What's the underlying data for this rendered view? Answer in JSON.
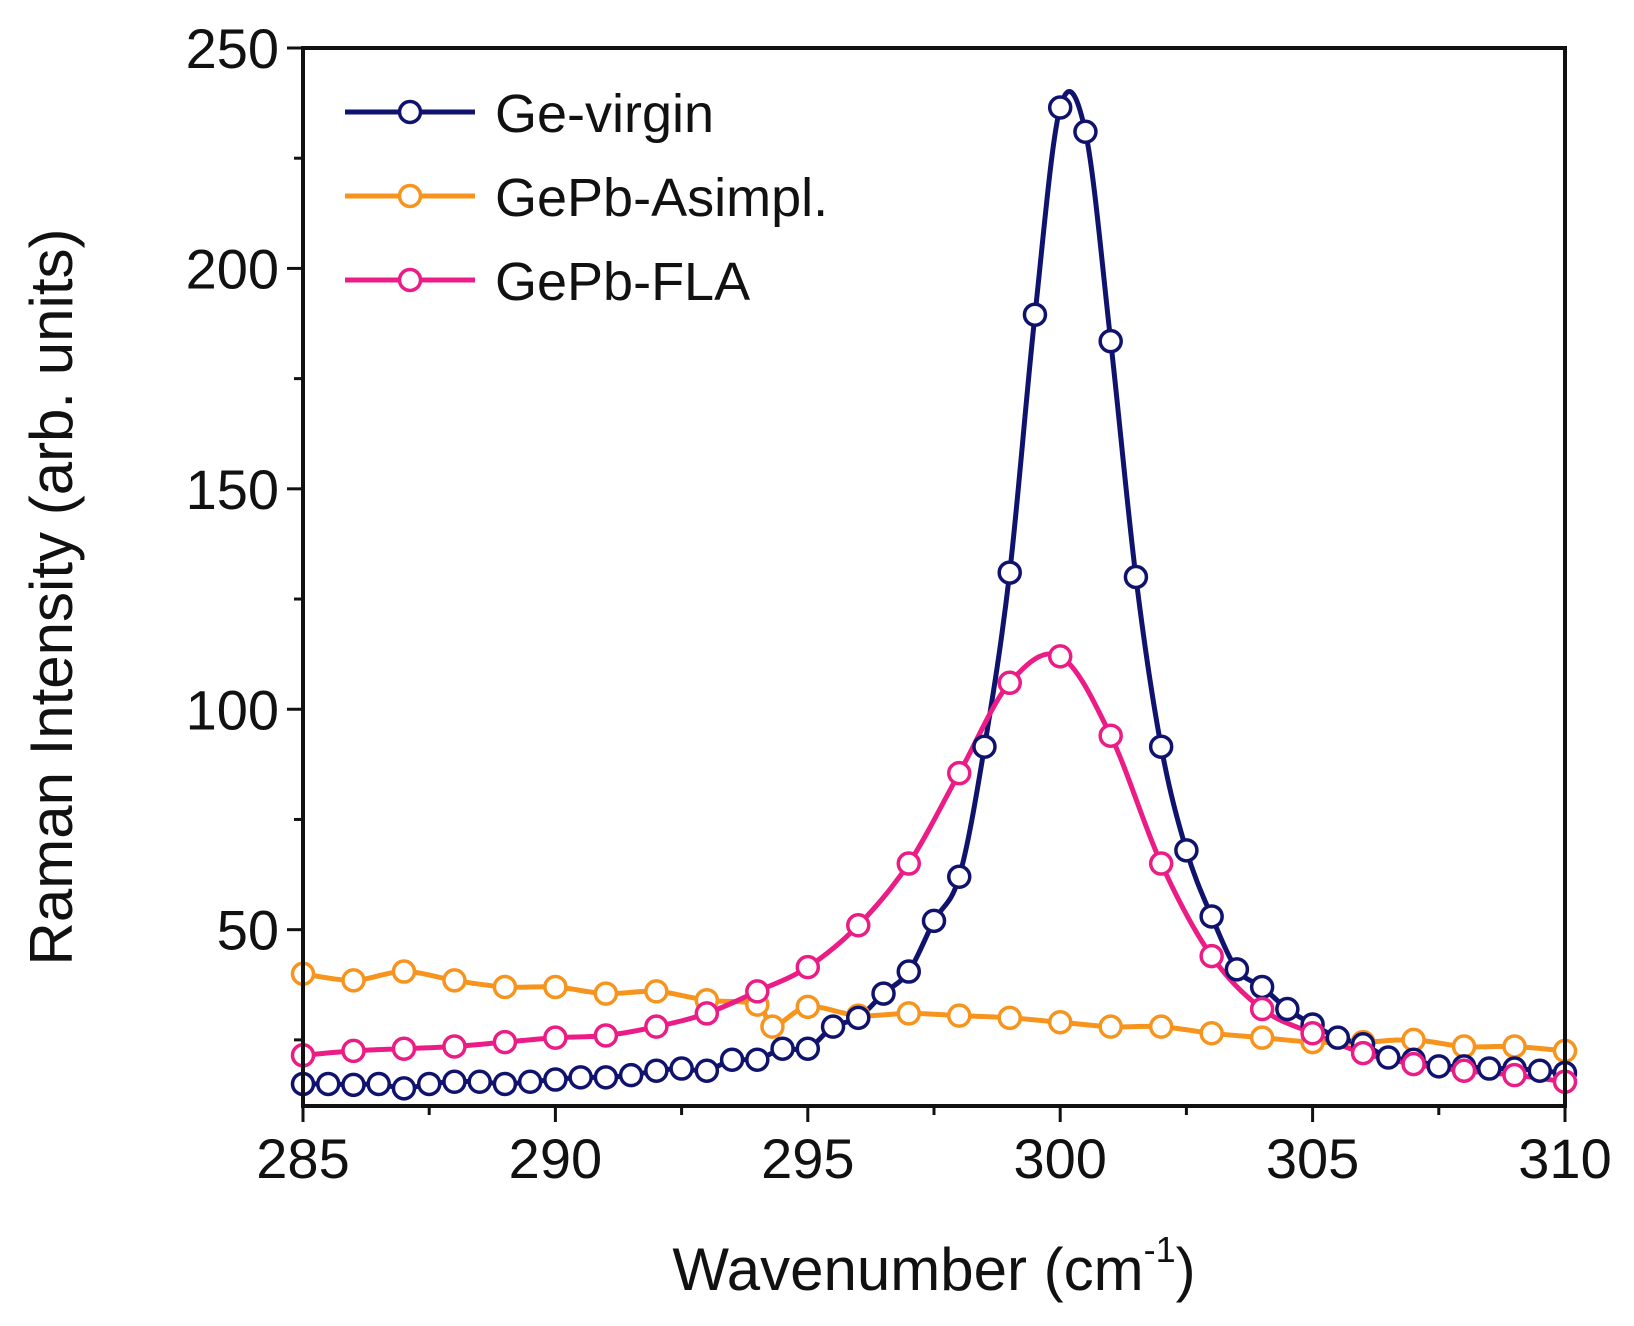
{
  "chart_data": {
    "type": "line",
    "title": "",
    "xlabel": "Wavenumber (cm",
    "xlabel_sup": "-1",
    "xlabel_close": ")",
    "ylabel": "Raman Intensity (arb. units)",
    "xlim": [
      285,
      310
    ],
    "ylim": [
      10,
      250
    ],
    "x_ticks": [
      "285",
      "290",
      "295",
      "300",
      "305",
      "310"
    ],
    "y_ticks": [
      "50",
      "100",
      "150",
      "200",
      "250"
    ],
    "legend_position": "top-left",
    "series": [
      {
        "name": "Ge-virgin",
        "color": "#10136e",
        "x": [
          285.0,
          285.5,
          286.0,
          286.5,
          287.0,
          287.5,
          288.0,
          288.5,
          289.0,
          289.5,
          290.0,
          290.5,
          291.0,
          291.5,
          292.0,
          292.5,
          293.0,
          293.5,
          294.0,
          294.5,
          295.0,
          295.5,
          296.0,
          296.5,
          297.0,
          297.5,
          298.0,
          298.5,
          299.0,
          299.5,
          300.0,
          300.5,
          301.0,
          301.5,
          302.0,
          302.5,
          303.0,
          303.5,
          304.0,
          304.5,
          305.0,
          305.5,
          306.0,
          306.5,
          307.0,
          307.5,
          308.0,
          308.5,
          309.0,
          309.5,
          310.0
        ],
        "y": [
          15,
          15,
          14.8,
          15,
          14,
          15,
          15.5,
          15.5,
          15,
          15.5,
          16,
          16.5,
          16.5,
          17,
          18,
          18.5,
          18,
          20.5,
          20.5,
          23,
          23,
          28,
          30,
          35.5,
          40.5,
          52,
          62,
          91.5,
          131,
          189.5,
          236.5,
          231,
          183.5,
          130,
          91.5,
          68,
          53,
          41,
          37,
          32,
          28.5,
          25.5,
          24,
          21,
          20.5,
          19,
          19,
          18.5,
          18.5,
          18,
          17.5
        ]
      },
      {
        "name": "GePb-Asimpl.",
        "color": "#f7941d",
        "x": [
          285.0,
          286.0,
          287.0,
          288.0,
          289.0,
          290.0,
          291.0,
          292.0,
          293.0,
          294.0,
          294.3,
          295.0,
          296.0,
          297.0,
          298.0,
          299.0,
          300.0,
          301.0,
          302.0,
          303.0,
          304.0,
          305.0,
          306.0,
          307.0,
          308.0,
          309.0,
          310.0
        ],
        "y": [
          40,
          38.5,
          40.5,
          38.5,
          37,
          37,
          35.5,
          36,
          34,
          33,
          28,
          32.5,
          30.5,
          31,
          30.5,
          30,
          29,
          28,
          28,
          26.5,
          25.5,
          24.5,
          24.5,
          25,
          23.5,
          23.5,
          22.5
        ]
      },
      {
        "name": "GePb-FLA",
        "color": "#ec1c86",
        "x": [
          285.0,
          286.0,
          287.0,
          288.0,
          289.0,
          290.0,
          291.0,
          292.0,
          293.0,
          294.0,
          295.0,
          296.0,
          297.0,
          298.0,
          299.0,
          300.0,
          301.0,
          302.0,
          303.0,
          304.0,
          305.0,
          306.0,
          307.0,
          308.0,
          309.0,
          310.0
        ],
        "y": [
          21.5,
          22.5,
          23,
          23.5,
          24.5,
          25.5,
          26,
          28,
          31,
          36,
          41.5,
          51,
          65,
          85.5,
          106,
          112,
          94,
          65,
          44,
          32,
          26.5,
          22,
          19.5,
          18,
          17,
          15.5
        ]
      }
    ]
  }
}
